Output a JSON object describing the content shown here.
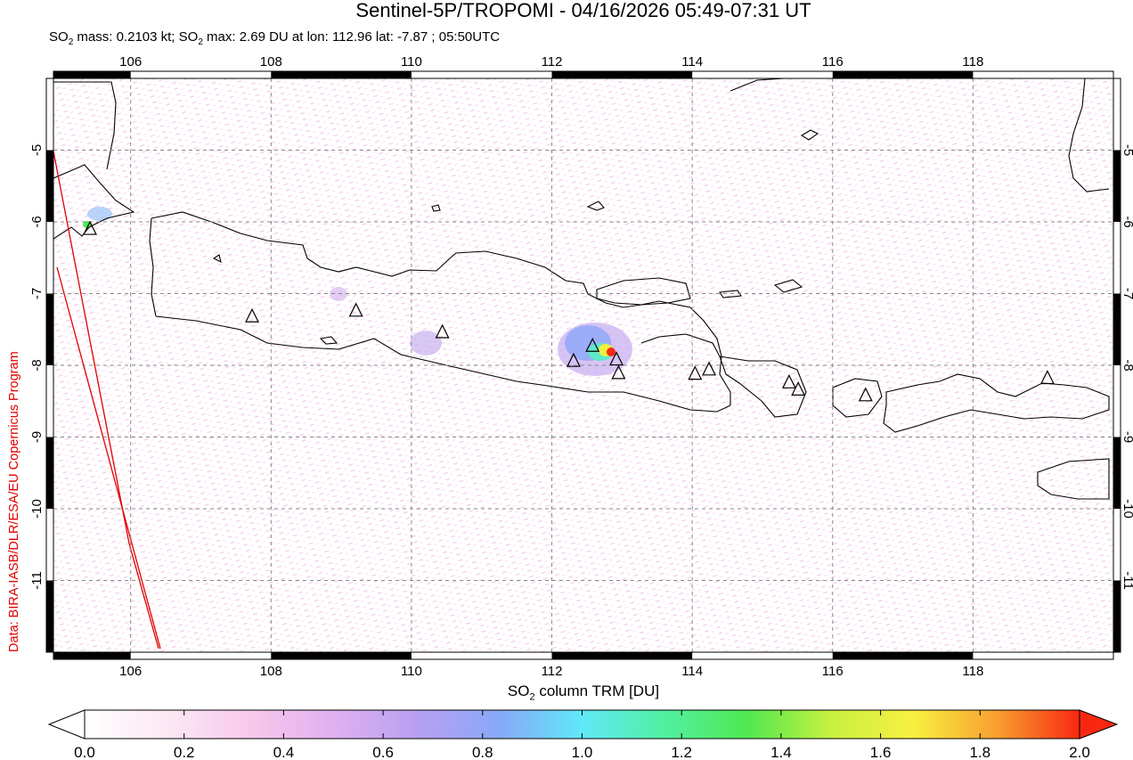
{
  "header": {
    "title": "Sentinel-5P/TROPOMI - 04/16/2026 05:49-07:31 UT",
    "subtitle_parts": [
      "SO",
      "2",
      " mass: 0.2103 kt; SO",
      "2",
      " max: 2.69 DU at lon: 112.96 lat: -7.87 ; 05:50UTC"
    ]
  },
  "credit": "Data: BIRA-IASB/DLR/ESA/EU Copernicus Program",
  "map": {
    "lon_range": [
      104.9,
      120.0
    ],
    "lat_range": [
      -12.0,
      -4.0
    ],
    "lon_ticks": [
      106,
      108,
      110,
      112,
      114,
      116,
      118
    ],
    "lat_ticks": [
      -5,
      -6,
      -7,
      -8,
      -9,
      -10,
      -11
    ],
    "grid": true,
    "grid_style": "dashed gray",
    "volcano_marker_color": "#000000",
    "coast_color": "#000000",
    "orbit_edge_color": "#e00000",
    "volcanoes": [
      {
        "lon": 105.42,
        "lat": -6.1
      },
      {
        "lon": 107.73,
        "lat": -7.32
      },
      {
        "lon": 109.21,
        "lat": -7.24
      },
      {
        "lon": 110.44,
        "lat": -7.54
      },
      {
        "lon": 112.31,
        "lat": -7.94
      },
      {
        "lon": 112.58,
        "lat": -7.73
      },
      {
        "lon": 112.92,
        "lat": -7.92
      },
      {
        "lon": 112.95,
        "lat": -8.11
      },
      {
        "lon": 114.04,
        "lat": -8.12
      },
      {
        "lon": 114.24,
        "lat": -8.06
      },
      {
        "lon": 115.38,
        "lat": -8.24
      },
      {
        "lon": 115.51,
        "lat": -8.34
      },
      {
        "lon": 116.47,
        "lat": -8.42
      },
      {
        "lon": 119.06,
        "lat": -8.18
      }
    ],
    "max_so2": {
      "lon": 112.96,
      "lat": -7.87,
      "value": 2.69
    }
  },
  "colorbar": {
    "label_parts": [
      "SO",
      "2",
      " column TRM [DU]"
    ],
    "ticks": [
      "0.0",
      "0.2",
      "0.4",
      "0.6",
      "0.8",
      "1.0",
      "1.2",
      "1.4",
      "1.6",
      "1.8",
      "2.0"
    ],
    "range": [
      0.0,
      2.0
    ],
    "colors": [
      "#ffffff",
      "#fbe8f4",
      "#f8c8ec",
      "#e0b0f0",
      "#b8a0f0",
      "#88a8f8",
      "#60e8f8",
      "#50f0a0",
      "#50e850",
      "#c8f040",
      "#f8f040",
      "#f8a030",
      "#f82810"
    ]
  }
}
